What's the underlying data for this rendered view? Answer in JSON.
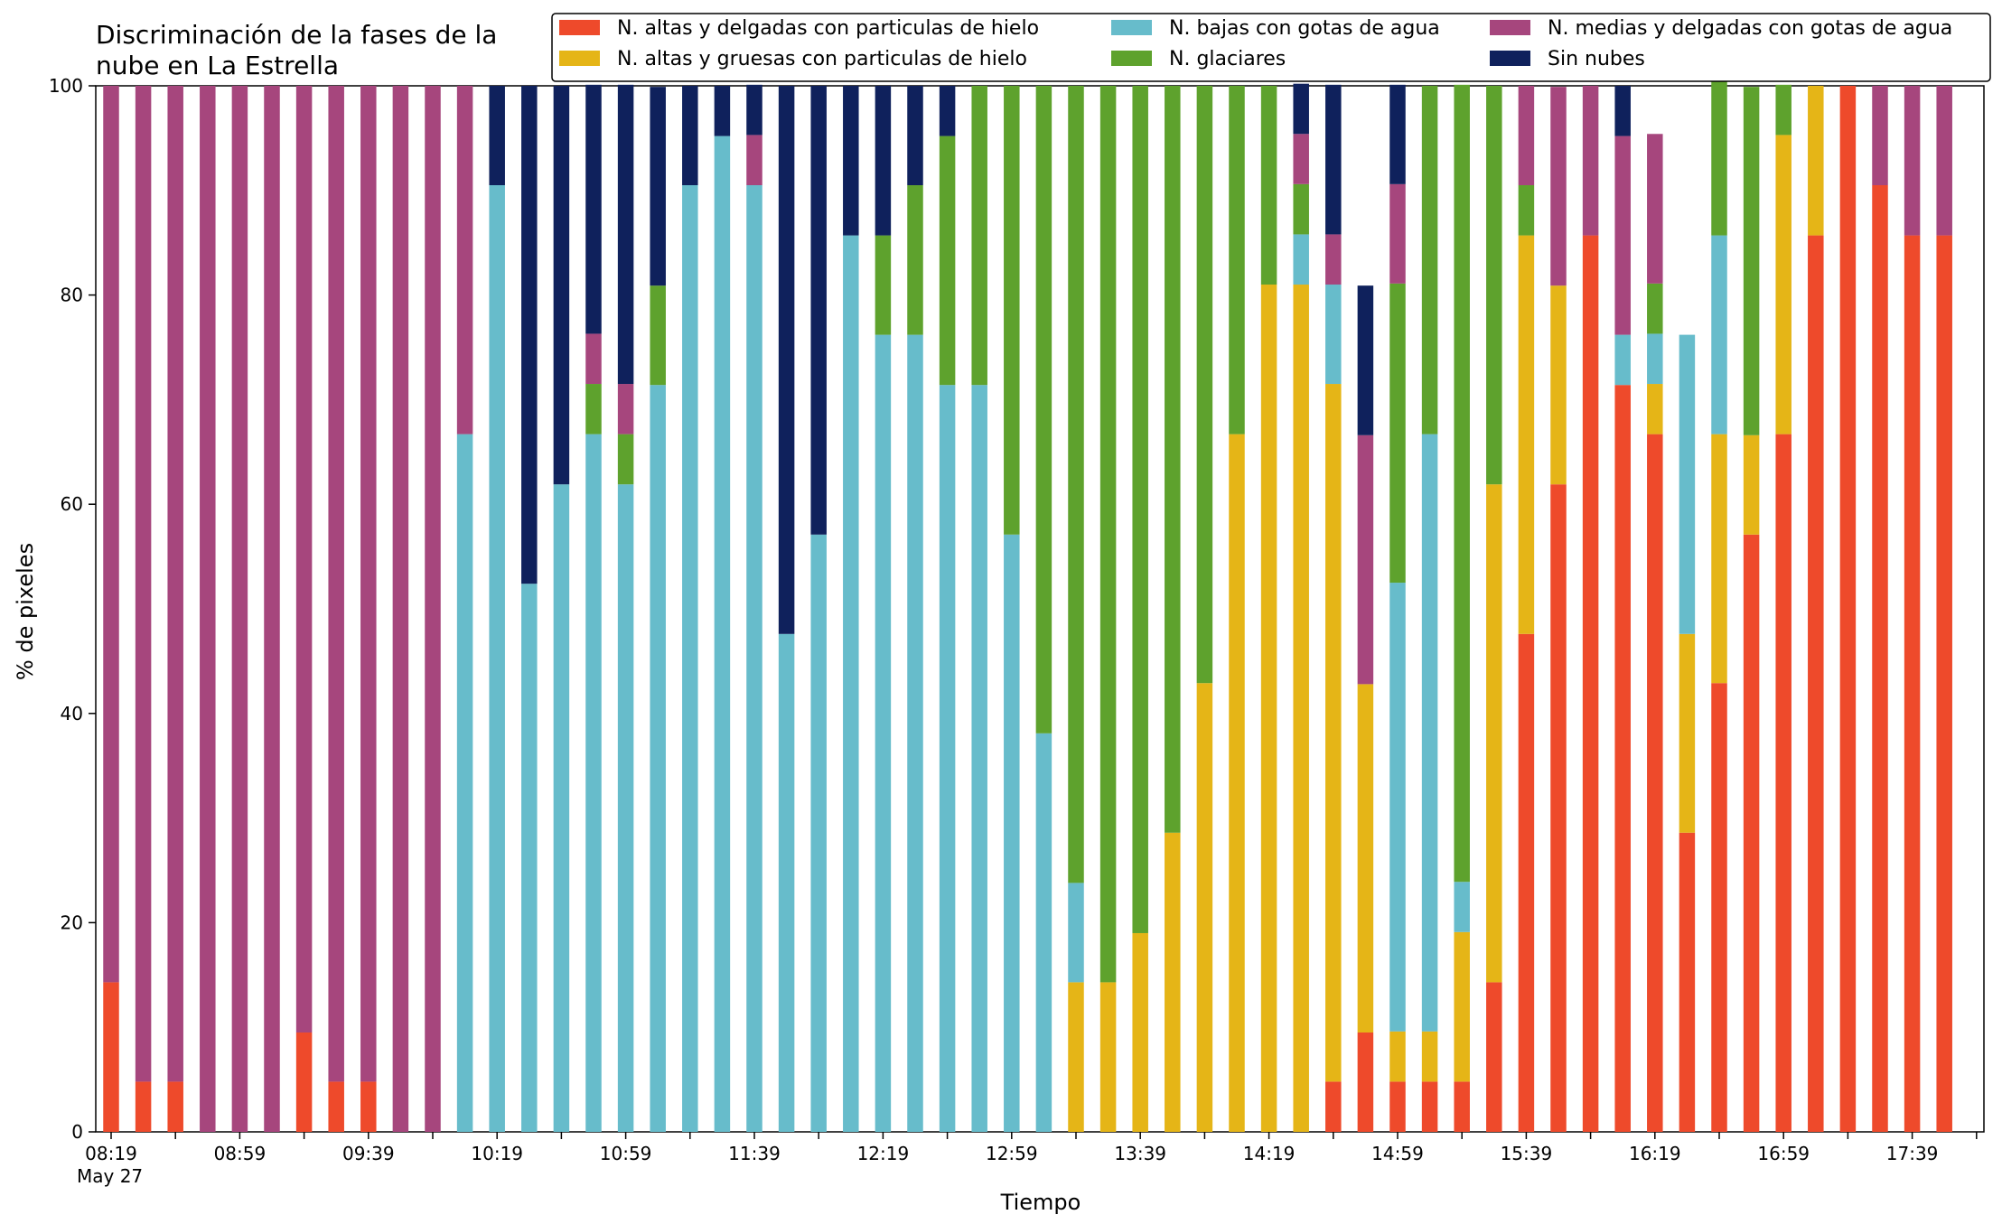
{
  "chart_data": {
    "type": "bar",
    "stacked": true,
    "title": [
      "Discriminación de la fases de la",
      "nube en La Estrella"
    ],
    "xlabel": "Tiempo",
    "ylabel": "% de pixeles",
    "ylim": [
      0,
      100
    ],
    "yticks": [
      0,
      20,
      40,
      60,
      80,
      100
    ],
    "xtick_labels": [
      "08:19",
      "08:59",
      "09:39",
      "10:19",
      "10:59",
      "11:39",
      "12:19",
      "12:59",
      "13:39",
      "14:19",
      "14:59",
      "15:39",
      "16:19",
      "16:59",
      "17:39"
    ],
    "xtick_sublabel": "May 27",
    "legend_position": "top-right",
    "categories": [
      "08:19",
      "08:29",
      "08:39",
      "08:49",
      "08:59",
      "09:09",
      "09:19",
      "09:29",
      "09:39",
      "09:49",
      "09:59",
      "10:09",
      "10:19",
      "10:29",
      "10:39",
      "10:49",
      "10:59",
      "11:09",
      "11:19",
      "11:29",
      "11:39",
      "11:49",
      "11:59",
      "12:09",
      "12:19",
      "12:29",
      "12:39",
      "12:49",
      "12:59",
      "13:09",
      "13:19",
      "13:29",
      "13:39",
      "13:49",
      "13:59",
      "14:09",
      "14:19",
      "14:29",
      "14:39",
      "14:49",
      "14:59",
      "15:09",
      "15:19",
      "15:29",
      "15:39",
      "15:49",
      "15:59",
      "16:09",
      "16:19",
      "16:29",
      "16:39",
      "16:49",
      "16:59",
      "17:09",
      "17:19",
      "17:29",
      "17:39",
      "17:49"
    ],
    "series": [
      {
        "name": "N. altas y delgadas con particulas de hielo",
        "color": "#ee4a2b",
        "values": [
          14.3,
          4.8,
          4.8,
          0,
          0,
          0,
          9.5,
          4.8,
          4.8,
          0,
          0,
          0,
          0,
          0,
          0,
          0,
          0,
          0,
          0,
          0,
          0,
          0,
          0,
          0,
          0,
          0,
          0,
          0,
          0,
          0,
          0,
          0,
          0,
          0,
          0,
          0,
          0,
          0,
          4.8,
          9.5,
          4.8,
          4.8,
          4.8,
          14.3,
          47.6,
          61.9,
          85.7,
          71.4,
          66.7,
          28.6,
          42.9,
          57.1,
          66.7,
          85.7,
          100,
          90.5,
          85.7,
          85.7
        ]
      },
      {
        "name": "N. altas y gruesas con particulas de hielo",
        "color": "#e5b517",
        "values": [
          0,
          0,
          0,
          0,
          0,
          0,
          0,
          0,
          0,
          0,
          0,
          0,
          0,
          0,
          0,
          0,
          0,
          0,
          0,
          0,
          0,
          0,
          0,
          0,
          0,
          0,
          0,
          0,
          0,
          0,
          14.3,
          14.3,
          19.0,
          28.6,
          42.9,
          66.7,
          81.0,
          81.0,
          66.7,
          33.3,
          4.8,
          4.8,
          14.3,
          47.6,
          38.1,
          19.0,
          0,
          0,
          4.8,
          19.0,
          23.8,
          9.5,
          28.6,
          14.3,
          0,
          0,
          0,
          0
        ]
      },
      {
        "name": "N. bajas con gotas de agua",
        "color": "#67bccb",
        "values": [
          0,
          0,
          0,
          0,
          0,
          0,
          0,
          0,
          0,
          0,
          0,
          66.7,
          90.5,
          52.4,
          61.9,
          66.7,
          61.9,
          71.4,
          90.5,
          95.2,
          90.5,
          47.6,
          57.1,
          85.7,
          76.2,
          76.2,
          71.4,
          71.4,
          57.1,
          38.1,
          9.5,
          0,
          0,
          0,
          0,
          0,
          0,
          4.8,
          9.5,
          0,
          42.9,
          57.1,
          4.8,
          0,
          0,
          0,
          0,
          4.8,
          4.8,
          28.6,
          19.0,
          0,
          0,
          0,
          0,
          0,
          0,
          0
        ]
      },
      {
        "name": "N. glaciares",
        "color": "#5ea22d",
        "values": [
          0,
          0,
          0,
          0,
          0,
          0,
          0,
          0,
          0,
          0,
          0,
          0,
          0,
          0,
          0,
          4.8,
          4.8,
          9.5,
          0,
          0,
          0,
          0,
          0,
          0,
          9.5,
          14.3,
          23.8,
          28.6,
          42.9,
          61.9,
          76.2,
          85.7,
          81.0,
          71.4,
          57.1,
          33.3,
          19.0,
          4.8,
          0,
          0,
          28.6,
          33.3,
          76.2,
          38.1,
          4.8,
          0,
          0,
          0,
          4.8,
          0,
          19.0,
          33.3,
          4.8,
          0,
          0,
          0,
          0,
          0
        ]
      },
      {
        "name": "N. medias y delgadas con gotas de agua",
        "color": "#a6467d",
        "values": [
          85.7,
          95.2,
          95.2,
          100,
          100,
          100,
          90.5,
          95.2,
          95.2,
          100,
          100,
          33.3,
          0,
          0,
          0,
          4.8,
          4.8,
          0,
          0,
          0,
          4.8,
          0,
          0,
          0,
          0,
          0,
          0,
          0,
          0,
          0,
          0,
          0,
          0,
          0,
          0,
          0,
          0,
          4.8,
          4.8,
          23.8,
          9.5,
          0,
          0,
          0,
          9.5,
          19.0,
          14.3,
          19.0,
          14.3,
          0,
          0,
          0,
          0,
          0,
          0,
          9.5,
          14.3,
          14.3
        ]
      },
      {
        "name": "Sin nubes",
        "color": "#0f215c",
        "values": [
          0,
          0,
          0,
          0,
          0,
          0,
          0,
          0,
          0,
          0,
          0,
          0,
          9.5,
          47.6,
          38.1,
          23.8,
          28.6,
          19.0,
          9.5,
          4.8,
          4.8,
          52.4,
          42.9,
          14.3,
          14.3,
          9.5,
          4.8,
          0,
          0,
          0,
          0,
          0,
          0,
          0,
          0,
          0,
          0,
          4.8,
          14.3,
          14.3,
          9.5,
          0,
          0,
          0,
          0,
          0,
          0,
          4.8,
          0,
          0,
          0,
          0,
          0,
          0,
          0,
          0,
          0,
          0
        ]
      }
    ]
  }
}
